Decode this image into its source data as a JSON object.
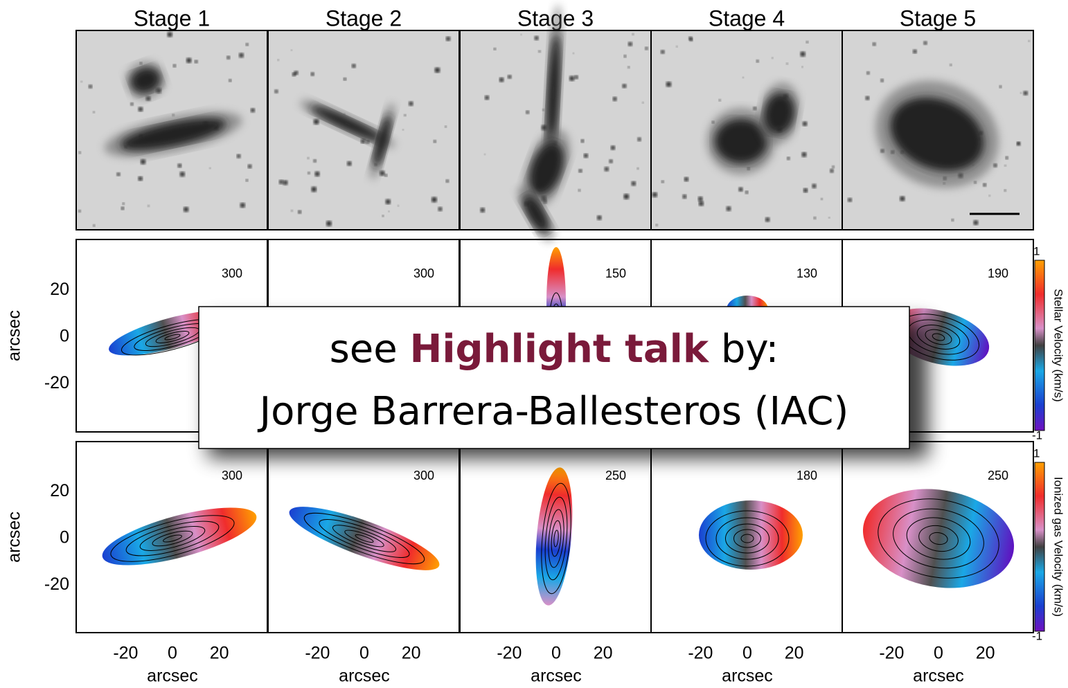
{
  "stages": [
    "Stage 1",
    "Stage 2",
    "Stage 3",
    "Stage 4",
    "Stage 5"
  ],
  "stellar_row": {
    "y_label": "arcsec",
    "yticks": [
      "20",
      "0",
      "-20"
    ],
    "scales": [
      "300",
      "300",
      "150",
      "130",
      "190"
    ],
    "colorbar": {
      "label": "Stellar Velocity (km/s)",
      "max": "1",
      "min": "-1"
    }
  },
  "gas_row": {
    "y_label": "arcsec",
    "yticks": [
      "20",
      "0",
      "-20"
    ],
    "scales": [
      "300",
      "300",
      "250",
      "180",
      "250"
    ],
    "colorbar": {
      "label": "Ionized gas Velocity (km/s)",
      "max": "1",
      "min": "-1"
    }
  },
  "x_axis": {
    "ticks": [
      "-20",
      "0",
      "20"
    ],
    "label": "arcsec"
  },
  "banner": {
    "prefix": "see",
    "highlight": "Highlight talk",
    "suffix": "by:",
    "line2": "Jorge Barrera-Ballesteros (IAC)"
  }
}
